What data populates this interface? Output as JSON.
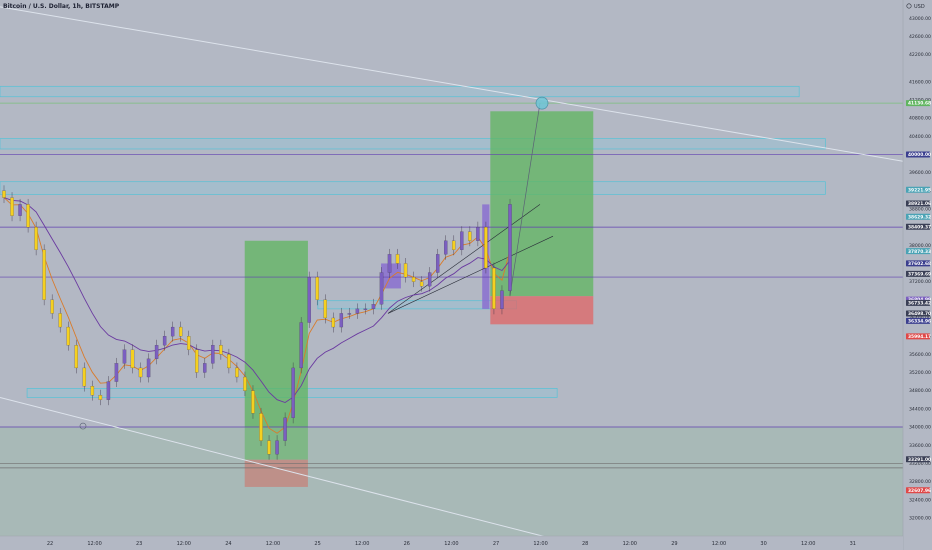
{
  "header": {
    "title": "Bitcoin / U.S. Dollar, 1h, BITSTAMP",
    "currency": "USD"
  },
  "colors": {
    "background": "#b3b8c4",
    "candle_up": "#7b5fc0",
    "candle_down": "#f5d020",
    "zone_border": "#56c2d6",
    "profit_zone": "#5fb55f",
    "loss_zone": "#e06666",
    "level_line": "#6040b0",
    "ema_fast": "#d97b2b",
    "ema_slow": "#6a3aa0"
  },
  "chart_data": {
    "type": "candlestick",
    "title": "Bitcoin / U.S. Dollar, 1h, BITSTAMP",
    "xlabel": "",
    "ylabel": "",
    "ylim": [
      31600,
      43400
    ],
    "x_ticks": [
      "22",
      "12:00",
      "23",
      "12:00",
      "24",
      "12:00",
      "25",
      "12:00",
      "26",
      "12:00",
      "27",
      "12:00",
      "28",
      "12:00",
      "29",
      "12:00",
      "30",
      "12:00",
      "31"
    ],
    "y_ticks": [
      43000,
      42600,
      42200,
      41600,
      41200,
      40800,
      40400,
      40000,
      39600,
      39200,
      38800,
      38400,
      38000,
      37600,
      37200,
      36800,
      36400,
      36000,
      35600,
      35200,
      34800,
      34400,
      34000,
      33600,
      33200,
      32800,
      32400,
      32000
    ],
    "y_tick_labels": [
      "43000.00",
      "42600.00",
      "42200.00",
      "41600.00",
      "41200.00",
      "40800.00",
      "40400.00",
      "40000.00",
      "39600.00",
      "39200.00",
      "38800.00",
      "38400.00",
      "38000.00",
      "37600.00",
      "37200.00",
      "36800.00",
      "36400.00",
      "36000.00",
      "35600.00",
      "35200.00",
      "34800.00",
      "34400.00",
      "34000.00",
      "33600.00",
      "33200.00",
      "32800.00",
      "32400.00",
      "32000.00"
    ],
    "price_badges": [
      {
        "value": 41130.68,
        "label": "41130.68",
        "color": "#5fb55f"
      },
      {
        "value": 40000.0,
        "label": "40000.00",
        "color": "#3b3f8f"
      },
      {
        "value": 39221.95,
        "label": "39221.95",
        "color": "#4aa3b5"
      },
      {
        "value": 38921.06,
        "label": "38921.06",
        "color": "#3a3f55"
      },
      {
        "value": 38629.32,
        "label": "38629.32",
        "color": "#4aa3b5"
      },
      {
        "value": 38409.37,
        "label": "38409.37",
        "color": "#3a3f55"
      },
      {
        "value": 37870.33,
        "label": "37870.33",
        "color": "#4aa3b5"
      },
      {
        "value": 37602.68,
        "label": "37602.68",
        "color": "#3b3f8f"
      },
      {
        "value": 37369.69,
        "label": "37369.69",
        "color": "#3a3f55"
      },
      {
        "value": 36804.99,
        "label": "36804.99",
        "color": "#7b5fc0"
      },
      {
        "value": 36733.42,
        "label": "36733.42",
        "color": "#3a3f55"
      },
      {
        "value": 36498.7,
        "label": "36498.70",
        "color": "#3a3f55"
      },
      {
        "value": 36334.96,
        "label": "36334.96",
        "color": "#3b3f8f"
      },
      {
        "value": 35994.17,
        "label": "35994.17",
        "color": "#e04848"
      },
      {
        "value": 33291.0,
        "label": "33291.00",
        "color": "#3a3f55"
      },
      {
        "value": 32607.96,
        "label": "32607.96",
        "color": "#e04848"
      }
    ],
    "horizontal_levels": [
      41130,
      40000,
      38400,
      37300,
      34000,
      33200,
      33100
    ],
    "rectangles": [
      {
        "kind": "zone",
        "x0": 0,
        "x1": 0.885,
        "y_top": 41500,
        "y_bottom": 41270
      },
      {
        "kind": "zone",
        "x0": 0,
        "x1": 0.914,
        "y_top": 40350,
        "y_bottom": 40120
      },
      {
        "kind": "zone",
        "x0": 0,
        "x1": 0.914,
        "y_top": 39400,
        "y_bottom": 39120
      },
      {
        "kind": "zone",
        "x0": 0.03,
        "x1": 0.617,
        "y_top": 34850,
        "y_bottom": 34650
      },
      {
        "kind": "zone",
        "x0": 0.352,
        "x1": 0.572,
        "y_top": 36780,
        "y_bottom": 36600
      },
      {
        "kind": "profit",
        "x0": 0.271,
        "x1": 0.341,
        "y_top": 38100,
        "y_bottom": 33280
      },
      {
        "kind": "loss",
        "x0": 0.271,
        "x1": 0.341,
        "y_top": 33280,
        "y_bottom": 32680
      },
      {
        "kind": "profit",
        "x0": 0.543,
        "x1": 0.657,
        "y_top": 40950,
        "y_bottom": 36880
      },
      {
        "kind": "loss",
        "x0": 0.543,
        "x1": 0.657,
        "y_top": 36880,
        "y_bottom": 36260
      },
      {
        "kind": "recent",
        "x0": 0.422,
        "x1": 0.444,
        "y_top": 37600,
        "y_bottom": 37050
      },
      {
        "kind": "recent",
        "x0": 0.534,
        "x1": 0.542,
        "y_top": 38900,
        "y_bottom": 36600
      }
    ],
    "candles_summary": {
      "description_values": [
        39050,
        38650,
        38900,
        38400,
        37900,
        36800,
        36500,
        36200,
        35800,
        35300,
        34900,
        34700,
        34600,
        35000,
        35400,
        35700,
        35300,
        35100,
        35500,
        35800,
        36000,
        36200,
        36000,
        35700,
        35200,
        35400,
        35800,
        35600,
        35300,
        35100,
        34800,
        34300,
        33700,
        33400,
        33700,
        34200,
        35300,
        36300,
        37300,
        36800,
        36400,
        36200,
        36500,
        36500,
        36600,
        36600,
        36700,
        37400,
        37800,
        37600,
        37300,
        37200,
        37100,
        37400,
        37800,
        38100,
        37900,
        38300,
        38100,
        38400,
        37500,
        36600,
        37000,
        38900
      ]
    }
  }
}
